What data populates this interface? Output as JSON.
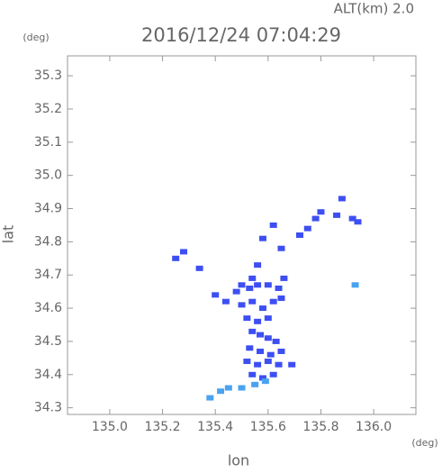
{
  "chart_data": {
    "type": "scatter",
    "title": "2016/12/24 07:04:29",
    "subtitle": "ALT(km) 2.0",
    "y_unit": "(deg)",
    "x_unit": "(deg)",
    "xlabel": "lon",
    "ylabel": "lat",
    "xlim": [
      134.84,
      136.16
    ],
    "ylim": [
      34.28,
      35.36
    ],
    "xticks": [
      {
        "value": 135.0,
        "label": "135.0"
      },
      135.2,
      135.4,
      135.6,
      135.8,
      {
        "value": 136.0,
        "label": "136.0"
      }
    ],
    "yticks": [
      35.3,
      35.2,
      35.1,
      {
        "value": 35.0,
        "label": "35.0"
      },
      34.9,
      34.8,
      34.7,
      34.6,
      34.5,
      34.4,
      34.3
    ],
    "series": [
      {
        "color": "#3d4ff2",
        "x": [
          135.25,
          135.28,
          135.34,
          135.4,
          135.44,
          135.48,
          135.5,
          135.53,
          135.56,
          135.6,
          135.64,
          135.66,
          135.5,
          135.54,
          135.58,
          135.62,
          135.65,
          135.52,
          135.56,
          135.6,
          135.54,
          135.57,
          135.6,
          135.63,
          135.53,
          135.57,
          135.61,
          135.65,
          135.52,
          135.56,
          135.6,
          135.64,
          135.69,
          135.54,
          135.58,
          135.62,
          135.58,
          135.62,
          135.65,
          135.72,
          135.75,
          135.78,
          135.8,
          135.86,
          135.88,
          135.92,
          135.94,
          135.56,
          135.54
        ],
        "y": [
          34.75,
          34.77,
          34.72,
          34.64,
          34.62,
          34.65,
          34.67,
          34.66,
          34.67,
          34.67,
          34.66,
          34.69,
          34.61,
          34.62,
          34.6,
          34.62,
          34.63,
          34.57,
          34.56,
          34.57,
          34.53,
          34.52,
          34.51,
          34.5,
          34.48,
          34.47,
          34.46,
          34.47,
          34.44,
          34.43,
          34.44,
          34.43,
          34.43,
          34.4,
          34.39,
          34.4,
          34.81,
          34.85,
          34.78,
          34.82,
          34.84,
          34.87,
          34.89,
          34.88,
          34.93,
          34.87,
          34.86,
          34.73,
          34.69
        ]
      },
      {
        "color": "#4aa3f0",
        "x": [
          135.38,
          135.42,
          135.45,
          135.5,
          135.55,
          135.59,
          135.93
        ],
        "y": [
          34.33,
          34.35,
          34.36,
          34.36,
          34.37,
          34.38,
          34.67
        ]
      }
    ]
  }
}
